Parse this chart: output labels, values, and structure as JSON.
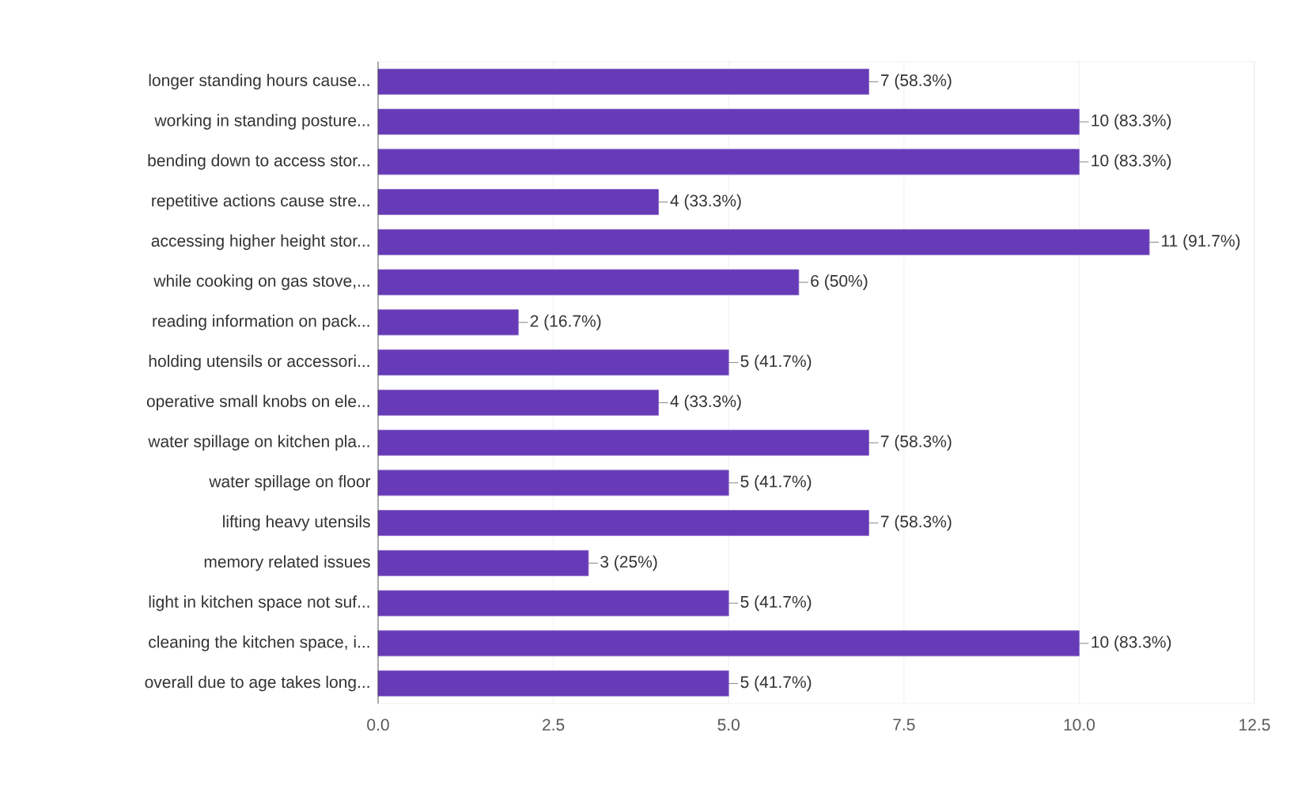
{
  "chart_data": {
    "type": "bar",
    "orientation": "horizontal",
    "color": "#673ab7",
    "categories": [
      "longer standing hours cause...",
      "working in standing posture...",
      "bending down to access stor...",
      "repetitive actions cause stre...",
      "accessing higher height stor...",
      "while cooking on gas stove,...",
      "reading information on pack...",
      "holding utensils or accessori...",
      "operative small knobs on ele...",
      "water spillage on kitchen pla...",
      "water spillage on floor",
      "lifting heavy utensils",
      "memory related issues",
      "light in kitchen space not suf...",
      "cleaning the kitchen space, i...",
      "overall due to age takes long..."
    ],
    "values": [
      7,
      10,
      10,
      4,
      11,
      6,
      2,
      5,
      4,
      7,
      5,
      7,
      3,
      5,
      10,
      5
    ],
    "value_labels": [
      "7 (58.3%)",
      "10 (83.3%)",
      "10 (83.3%)",
      "4 (33.3%)",
      "11 (91.7%)",
      "6 (50%)",
      "2 (16.7%)",
      "5 (41.7%)",
      "4 (33.3%)",
      "7 (58.3%)",
      "5 (41.7%)",
      "7 (58.3%)",
      "3 (25%)",
      "5 (41.7%)",
      "10 (83.3%)",
      "5 (41.7%)"
    ],
    "xlim": [
      0,
      12.5
    ],
    "xticks": [
      {
        "value": 0,
        "label": "0.0"
      },
      {
        "value": 2.5,
        "label": "2.5"
      },
      {
        "value": 5,
        "label": "5.0"
      },
      {
        "value": 7.5,
        "label": "7.5"
      },
      {
        "value": 10,
        "label": "10.0"
      },
      {
        "value": 12.5,
        "label": "12.5"
      }
    ],
    "grid": "x"
  }
}
